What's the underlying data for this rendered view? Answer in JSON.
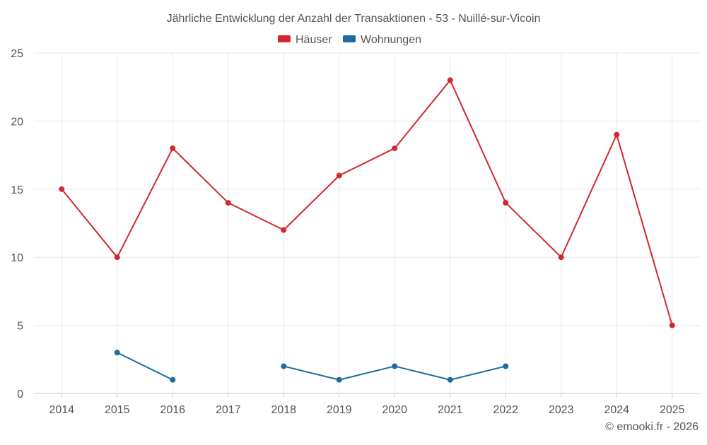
{
  "chart_data": {
    "type": "line",
    "title": "Jährliche Entwicklung der Anzahl der Transaktionen - 53 - Nuillé-sur-Vicoin",
    "categories": [
      "2014",
      "2015",
      "2016",
      "2017",
      "2018",
      "2019",
      "2020",
      "2021",
      "2022",
      "2023",
      "2024",
      "2025"
    ],
    "series": [
      {
        "name": "Häuser",
        "color": "#d0282e",
        "values": [
          15,
          10,
          18,
          14,
          12,
          16,
          18,
          23,
          14,
          10,
          19,
          5
        ]
      },
      {
        "name": "Wohnungen",
        "color": "#1d6ba0",
        "values": [
          null,
          3,
          1,
          null,
          2,
          1,
          2,
          1,
          2,
          null,
          null,
          null
        ]
      }
    ],
    "ylim": [
      0,
      25
    ],
    "yticks": [
      0,
      5,
      10,
      15,
      20,
      25
    ],
    "grid": true,
    "legend_position": "top-center",
    "xlabel": "",
    "ylabel": ""
  },
  "footer": {
    "credit": "© emooki.fr - 2026"
  },
  "colors": {
    "grid": "#e8e8e8",
    "axis": "#cccccc",
    "text": "#555555"
  }
}
